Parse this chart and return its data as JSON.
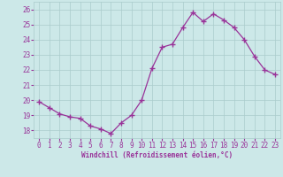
{
  "x": [
    0,
    1,
    2,
    3,
    4,
    5,
    6,
    7,
    8,
    9,
    10,
    11,
    12,
    13,
    14,
    15,
    16,
    17,
    18,
    19,
    20,
    21,
    22,
    23
  ],
  "y": [
    19.9,
    19.5,
    19.1,
    18.9,
    18.8,
    18.3,
    18.1,
    17.8,
    18.5,
    19.0,
    20.0,
    22.1,
    23.5,
    23.7,
    24.8,
    25.8,
    25.2,
    25.7,
    25.3,
    24.8,
    24.0,
    22.9,
    22.0,
    21.7
  ],
  "line_color": "#993399",
  "marker": "+",
  "marker_size": 4,
  "background_color": "#cce8e8",
  "grid_color": "#aacccc",
  "ylabel_ticks": [
    18,
    19,
    20,
    21,
    22,
    23,
    24,
    25,
    26
  ],
  "xlabel": "Windchill (Refroidissement éolien,°C)",
  "ylim": [
    17.5,
    26.5
  ],
  "xlim": [
    -0.5,
    23.5
  ],
  "tick_fontsize": 5.5,
  "xlabel_fontsize": 5.5,
  "fig_width": 3.2,
  "fig_height": 2.0,
  "dpi": 100
}
